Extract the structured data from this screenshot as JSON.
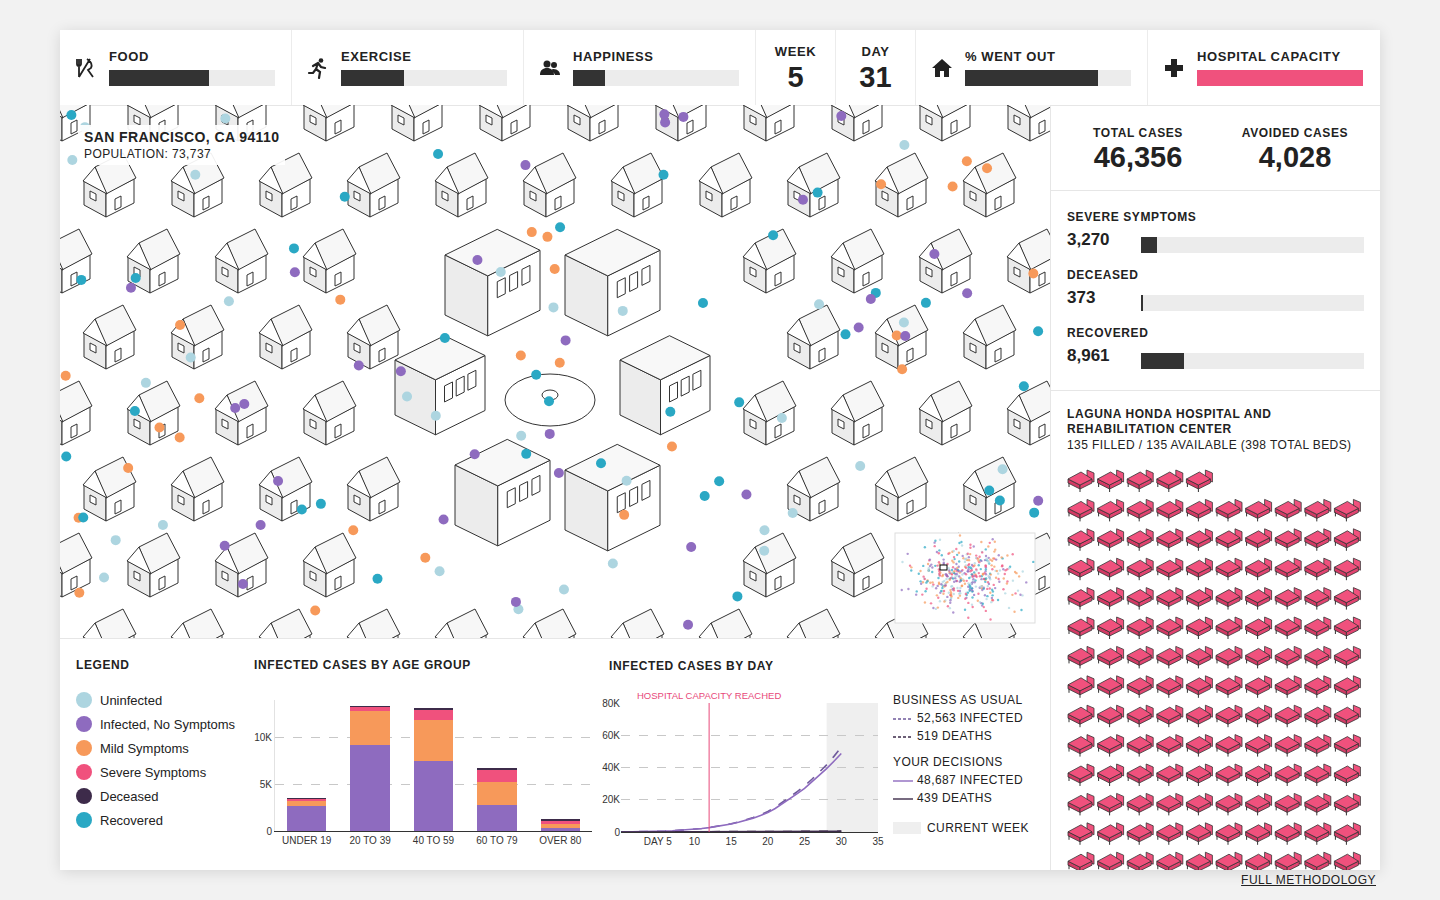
{
  "status_bar": [
    {
      "label": "FOOD",
      "level": 60
    },
    {
      "label": "EXERCISE",
      "level": 38
    },
    {
      "label": "HAPPINESS",
      "level": 19
    },
    {
      "label": "WEEK",
      "value": 5
    },
    {
      "label": "DAY",
      "value": 31
    },
    {
      "label": "% WENT OUT",
      "level": 80
    },
    {
      "label": "HOSPITAL CAPACITY",
      "level": 100,
      "color": "#f0517d"
    }
  ],
  "map": {
    "location": "SAN FRANCISCO, CA 94110",
    "population": "POPULATION: 73,737"
  },
  "summary": {
    "total_cases": {
      "label": "TOTAL CASES",
      "value": 46356
    },
    "avoided_cases": {
      "label": "AVOIDED CASES",
      "value": 4028
    },
    "outcomes": [
      {
        "label": "SEVERE SYMPTOMS",
        "value": 3270
      },
      {
        "label": "DECEASED",
        "value": 373
      },
      {
        "label": "RECOVERED",
        "value": 8961
      }
    ]
  },
  "hospital": {
    "name": "LAGUNA HONDA HOSPITAL AND REHABILITATION CENTER",
    "beds_text": "135 FILLED / 135 AVAILABLE (398 TOTAL BEDS)",
    "beds_filled": 135
  },
  "legend": {
    "title": "LEGEND",
    "items": [
      {
        "name": "Uninfected",
        "color": "#add5e0"
      },
      {
        "name": "Infected, No Symptoms",
        "color": "#8e6bbf"
      },
      {
        "name": "Mild Symptoms",
        "color": "#f7995a"
      },
      {
        "name": "Severe Symptoms",
        "color": "#f0517d"
      },
      {
        "name": "Deceased",
        "color": "#3d2b4a"
      },
      {
        "name": "Recovered",
        "color": "#2aa8c4"
      }
    ]
  },
  "chart_data": [
    {
      "type": "bar",
      "title": "INFECTED CASES BY AGE GROUP",
      "stacked": true,
      "grid": true,
      "categories": [
        "UNDER 19",
        "20 TO 39",
        "40 TO 59",
        "60 TO 79",
        "OVER 80"
      ],
      "series": [
        {
          "name": "Infected, No Symptoms",
          "color": "#8e6bbf",
          "values": [
            2700,
            9200,
            7500,
            2750,
            300
          ]
        },
        {
          "name": "Mild Symptoms",
          "color": "#f7995a",
          "values": [
            500,
            3600,
            4400,
            2450,
            400
          ]
        },
        {
          "name": "Severe Symptoms",
          "color": "#f0517d",
          "values": [
            250,
            400,
            1000,
            1300,
            400
          ]
        },
        {
          "name": "Deceased",
          "color": "#3d2b4a",
          "values": [
            50,
            150,
            200,
            200,
            200
          ]
        }
      ],
      "ylim": [
        0,
        14000
      ],
      "yticks": [
        0,
        {
          "value": 5000,
          "label": "5K"
        },
        {
          "value": 10000,
          "label": "10K"
        }
      ]
    },
    {
      "type": "line",
      "title": "INFECTED CASES BY DAY",
      "grid": true,
      "x": [
        0,
        1,
        2,
        3,
        4,
        5,
        6,
        7,
        8,
        9,
        10,
        11,
        12,
        13,
        14,
        15,
        16,
        17,
        18,
        19,
        20,
        21,
        22,
        23,
        24,
        25,
        26,
        27,
        28,
        29,
        30
      ],
      "series": [
        {
          "group": "BUSINESS AS USUAL",
          "name": "52,563 INFECTED",
          "color": "#6f5a9c",
          "line_style": "dashed",
          "values": [
            0,
            40,
            90,
            160,
            260,
            390,
            550,
            750,
            1000,
            1330,
            1720,
            2180,
            2750,
            3420,
            4200,
            5150,
            6200,
            7500,
            9000,
            10700,
            12700,
            15400,
            18400,
            21700,
            25100,
            28600,
            32700,
            37000,
            41600,
            46900,
            52563
          ]
        },
        {
          "group": "BUSINESS AS USUAL",
          "name": "519 DEATHS",
          "color": "#3d2b4a",
          "line_style": "dashed",
          "values": [
            0,
            0,
            0,
            0,
            0,
            0,
            0,
            0,
            1,
            2,
            4,
            6,
            9,
            13,
            19,
            26,
            35,
            46,
            59,
            74,
            92,
            113,
            137,
            164,
            194,
            228,
            268,
            314,
            366,
            438,
            519
          ]
        },
        {
          "group": "YOUR DECISIONS",
          "name": "48,687 INFECTED",
          "color": "#8e6bbf",
          "line_style": "solid",
          "values": [
            0,
            40,
            90,
            160,
            260,
            390,
            550,
            750,
            1000,
            1320,
            1700,
            2150,
            2700,
            3350,
            4100,
            5000,
            6000,
            7200,
            8600,
            10200,
            12000,
            14600,
            17500,
            20600,
            23800,
            27000,
            31000,
            35000,
            39300,
            43900,
            48687
          ]
        },
        {
          "group": "YOUR DECISIONS",
          "name": "439 DEATHS",
          "color": "#3d2b4a",
          "line_style": "solid",
          "values": [
            0,
            0,
            0,
            0,
            0,
            0,
            0,
            0,
            1,
            2,
            4,
            6,
            9,
            13,
            18,
            25,
            33,
            43,
            55,
            69,
            85,
            104,
            126,
            150,
            177,
            207,
            240,
            277,
            316,
            368,
            439
          ]
        }
      ],
      "annotations": [
        {
          "text": "HOSPITAL CAPACITY REACHED",
          "x": 12
        }
      ],
      "shaded_range": {
        "label": "CURRENT WEEK",
        "x": [
          28,
          35
        ]
      },
      "xlim": [
        0,
        35
      ],
      "xticks": [
        {
          "value": 5,
          "label": "DAY 5"
        },
        10,
        15,
        20,
        25,
        30,
        35
      ],
      "ylim": [
        0,
        80000
      ],
      "yticks": [
        0,
        {
          "value": 20000,
          "label": "20K"
        },
        {
          "value": 40000,
          "label": "40K"
        },
        {
          "value": 60000,
          "label": "60K"
        },
        {
          "value": 80000,
          "label": "80K"
        }
      ]
    }
  ],
  "footer_link": "FULL METHODOLOGY"
}
